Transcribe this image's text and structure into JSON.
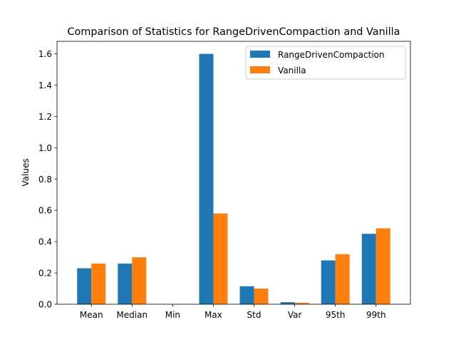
{
  "chart_data": {
    "type": "bar",
    "title": "Comparison of Statistics for RangeDrivenCompaction and Vanilla",
    "xlabel": "",
    "ylabel": "Values",
    "categories": [
      "Mean",
      "Median",
      "Min",
      "Max",
      "Std",
      "Var",
      "95th",
      "99th"
    ],
    "series": [
      {
        "name": "RangeDrivenCompaction",
        "color": "#1f77b4",
        "values": [
          0.23,
          0.26,
          0.0,
          1.6,
          0.115,
          0.013,
          0.28,
          0.45
        ]
      },
      {
        "name": "Vanilla",
        "color": "#ff7f0e",
        "values": [
          0.26,
          0.3,
          0.0,
          0.58,
          0.1,
          0.01,
          0.32,
          0.485
        ]
      }
    ],
    "ylim": [
      0,
      1.68
    ],
    "yticks": [
      0.0,
      0.2,
      0.4,
      0.6,
      0.8,
      1.0,
      1.2,
      1.4,
      1.6
    ],
    "grid": false,
    "legend_position": "top-right"
  }
}
